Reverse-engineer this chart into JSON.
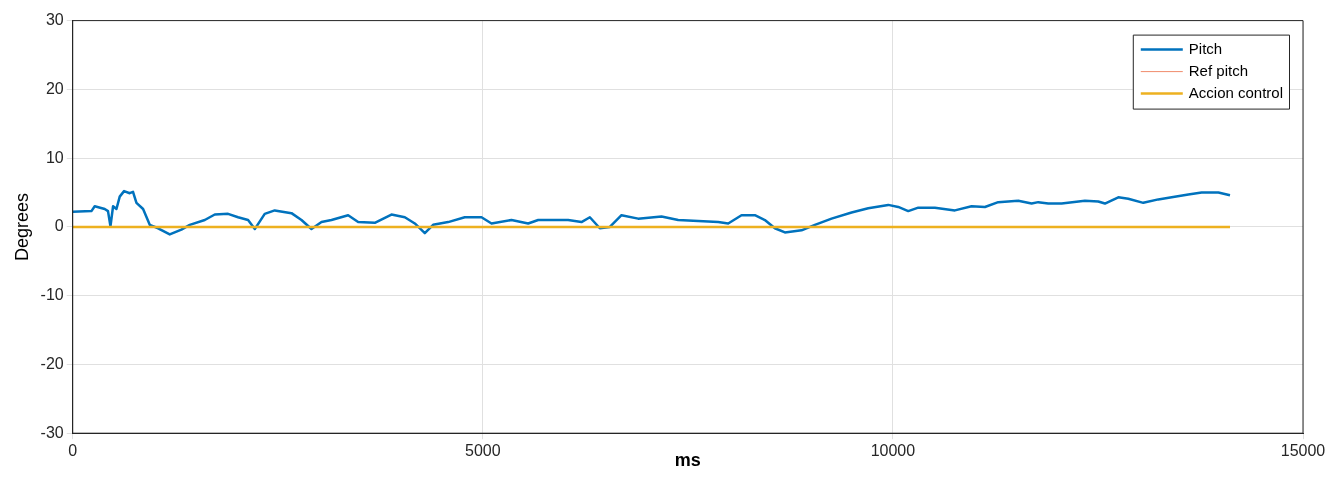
{
  "chart_data": {
    "type": "line",
    "xlabel": "ms",
    "ylabel": "Degrees",
    "xlim": [
      0,
      15000
    ],
    "xticks": [
      0,
      5000,
      10000,
      15000
    ],
    "ylim": [
      -30,
      30
    ],
    "yticks": [
      -30,
      -20,
      -10,
      0,
      10,
      20,
      30
    ],
    "grid": true,
    "legend": "top right",
    "series": [
      {
        "name": "Pitch",
        "color": "#0072bd",
        "x": [
          0,
          228,
          268,
          390,
          430,
          460,
          492,
          533,
          573,
          626,
          695,
          735,
          777,
          858,
          939,
          1041,
          1183,
          1325,
          1427,
          1610,
          1732,
          1894,
          2016,
          2138,
          2220,
          2341,
          2463,
          2667,
          2789,
          2911,
          3033,
          3155,
          3358,
          3480,
          3683,
          3886,
          4049,
          4171,
          4293,
          4394,
          4577,
          4780,
          4984,
          5106,
          5350,
          5553,
          5675,
          6040,
          6203,
          6305,
          6427,
          6549,
          6691,
          6894,
          7179,
          7382,
          7870,
          7992,
          8154,
          8317,
          8439,
          8561,
          8683,
          8886,
          9049,
          9252,
          9496,
          9699,
          9943,
          10065,
          10187,
          10309,
          10512,
          10756,
          10959,
          11122,
          11284,
          11528,
          11691,
          11772,
          11894,
          12057,
          12341,
          12504,
          12585,
          12748,
          12870,
          13053,
          13236,
          13399,
          13602,
          13764,
          13968,
          14110
        ],
        "values": [
          2.2,
          2.3,
          3.0,
          2.6,
          2.3,
          0.1,
          3.0,
          2.6,
          4.4,
          5.2,
          4.9,
          5.1,
          3.5,
          2.6,
          0.3,
          -0.2,
          -1.1,
          -0.4,
          0.3,
          1.0,
          1.8,
          1.9,
          1.4,
          1.0,
          -0.3,
          1.9,
          2.4,
          2.0,
          1.0,
          -0.3,
          0.7,
          1.0,
          1.7,
          0.7,
          0.6,
          1.8,
          1.4,
          0.5,
          -0.9,
          0.3,
          0.7,
          1.4,
          1.4,
          0.5,
          1.0,
          0.5,
          1.0,
          1.0,
          0.7,
          1.4,
          -0.2,
          0.0,
          1.7,
          1.2,
          1.5,
          1.0,
          0.7,
          0.5,
          1.7,
          1.7,
          1.0,
          -0.2,
          -0.8,
          -0.5,
          0.3,
          1.2,
          2.1,
          2.7,
          3.2,
          2.9,
          2.3,
          2.8,
          2.8,
          2.4,
          3.0,
          2.9,
          3.6,
          3.8,
          3.4,
          3.6,
          3.4,
          3.4,
          3.8,
          3.7,
          3.4,
          4.3,
          4.1,
          3.5,
          4.0,
          4.3,
          4.7,
          5.0,
          5.0,
          4.6
        ]
      },
      {
        "name": "Ref pitch",
        "color": "#f08c6c"
      },
      {
        "name": "Accion control",
        "color": "#edb120",
        "x": [
          0,
          14110
        ],
        "values": [
          0,
          0
        ]
      }
    ]
  }
}
